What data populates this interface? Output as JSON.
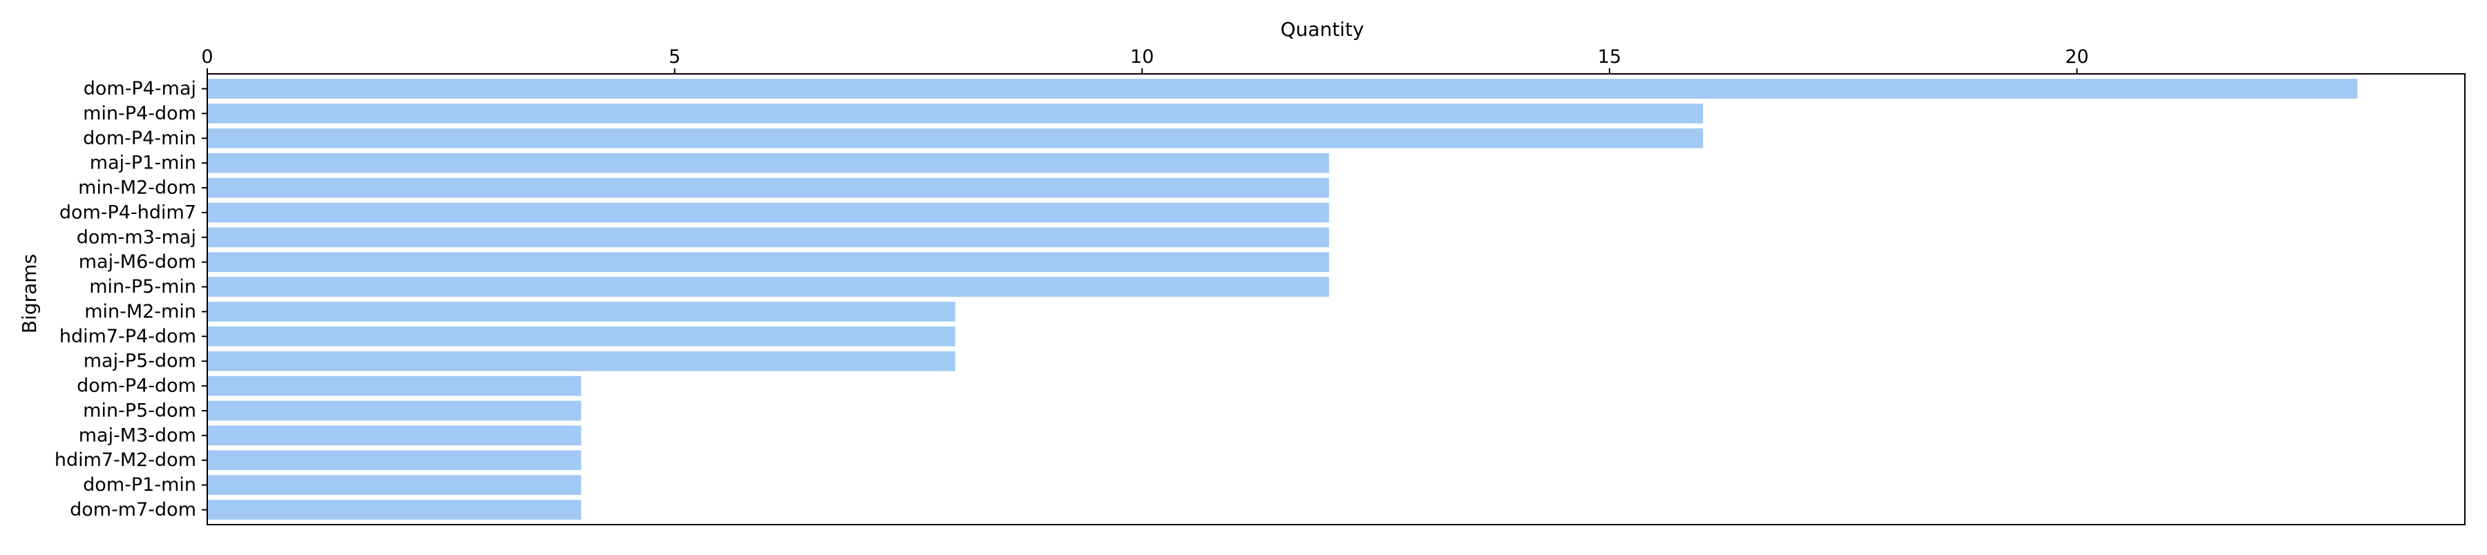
{
  "chart_data": {
    "type": "bar",
    "orientation": "horizontal",
    "title": "",
    "xlabel": "Quantity",
    "ylabel": "Bigrams",
    "x_axis_position": "top",
    "xlim": [
      0,
      24.15
    ],
    "xticks": [
      0,
      5,
      10,
      15,
      20
    ],
    "grid": false,
    "legend": "none",
    "bar_color": "#a1c9f4",
    "categories": [
      "dom-P4-maj",
      "min-P4-dom",
      "dom-P4-min",
      "maj-P1-min",
      "min-M2-dom",
      "dom-P4-hdim7",
      "dom-m3-maj",
      "maj-M6-dom",
      "min-P5-min",
      "min-M2-min",
      "hdim7-P4-dom",
      "maj-P5-dom",
      "dom-P4-dom",
      "min-P5-dom",
      "maj-M3-dom",
      "hdim7-M2-dom",
      "dom-P1-min",
      "dom-m7-dom"
    ],
    "values": [
      23,
      16,
      16,
      12,
      12,
      12,
      12,
      12,
      12,
      8,
      8,
      8,
      4,
      4,
      4,
      4,
      4,
      4
    ]
  }
}
